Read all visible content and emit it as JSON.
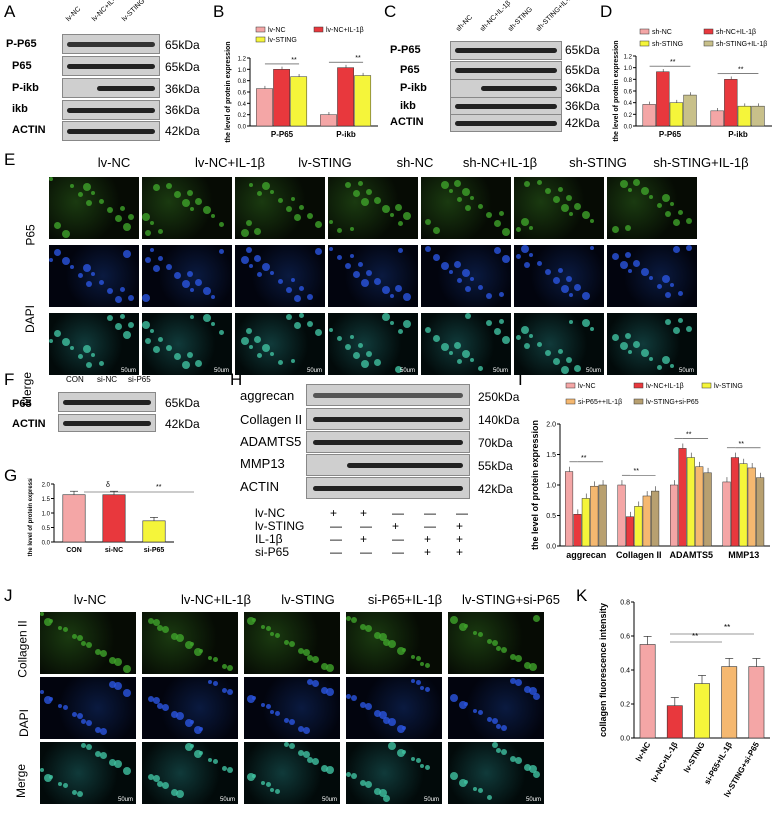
{
  "panels": {
    "A": {
      "label": "A",
      "cols": [
        "lv-NC",
        "lv-NC+IL-1β",
        "lv-STING"
      ],
      "rows": [
        "P-P65",
        "P65",
        "P-ikb",
        "ikb",
        "ACTIN"
      ],
      "kda": [
        "65kDa",
        "65kDa",
        "36kDa",
        "36kDa",
        "42kDa"
      ]
    },
    "B": {
      "label": "B",
      "ylabel": "the level of protein expression",
      "legend": [
        "lv-NC",
        "lv-NC+IL-1β",
        "lv-STING"
      ],
      "groups": [
        "P-P65",
        "P-ikb"
      ],
      "sig": "**"
    },
    "C": {
      "label": "C",
      "cols": [
        "sh-NC",
        "sh-NC+IL-1β",
        "sh-STING",
        "sh-STING+IL-1β"
      ],
      "rows": [
        "P-P65",
        "P65",
        "P-ikb",
        "ikb",
        "ACTIN"
      ],
      "kda": [
        "65kDa",
        "65kDa",
        "36kDa",
        "36kDa",
        "42kDa"
      ]
    },
    "D": {
      "label": "D",
      "ylabel": "the level of protein expression",
      "legend": [
        "sh-NC",
        "sh-NC+IL-1β",
        "sh-STING",
        "sh-STING+IL-1β"
      ],
      "groups": [
        "P-P65",
        "P-ikb"
      ],
      "sig": "**",
      "sig2": "δ"
    },
    "E": {
      "label": "E",
      "cols": [
        "lv-NC",
        "lv-NC+IL-1β",
        "lv-STING",
        "sh-NC",
        "sh-NC+IL-1β",
        "sh-STING",
        "sh-STING+IL-1β"
      ],
      "rows": [
        "P65",
        "DAPI",
        "Merge"
      ],
      "scale": "50um"
    },
    "F": {
      "label": "F",
      "cols": [
        "CON",
        "si-NC",
        "si-P65"
      ],
      "rows": [
        "P65",
        "ACTIN"
      ],
      "kda": [
        "65kDa",
        "42kDa"
      ]
    },
    "G": {
      "label": "G",
      "ylabel": "the level of protein expression",
      "sig": "**",
      "sig2": "δ"
    },
    "H": {
      "label": "H",
      "rows": [
        "aggrecan",
        "Collagen II",
        "ADAMTS5",
        "MMP13",
        "ACTIN"
      ],
      "kda": [
        "250kDa",
        "140kDa",
        "70kDa",
        "55kDa",
        "42kDa"
      ],
      "conds": [
        {
          "name": "lv-NC",
          "marks": [
            "+",
            "+",
            "—",
            "—",
            "—"
          ]
        },
        {
          "name": "lv-STING",
          "marks": [
            "—",
            "—",
            "+",
            "—",
            "+"
          ]
        },
        {
          "name": "IL-1β",
          "marks": [
            "—",
            "+",
            "—",
            "+",
            "+"
          ]
        },
        {
          "name": "si-P65",
          "marks": [
            "—",
            "—",
            "—",
            "+",
            "+"
          ]
        }
      ]
    },
    "I": {
      "label": "I",
      "ylabel": "the level of protein expression",
      "legend": [
        "lv-NC",
        "lv-NC+IL-1β",
        "lv-STING",
        "si-P65++IL-1β",
        "lv-STING+si-P65"
      ],
      "groups": [
        "aggrecan",
        "Collagen II",
        "ADAMTS5",
        "MMP13"
      ],
      "sig": "**"
    },
    "J": {
      "label": "J",
      "cols": [
        "lv-NC",
        "lv-NC+IL-1β",
        "lv-STING",
        "si-P65+IL-1β",
        "lv-STING+si-P65"
      ],
      "rows": [
        "Collagen II",
        "DAPI",
        "Merge"
      ],
      "scale": "50um"
    },
    "K": {
      "label": "K",
      "ylabel": "collagen fluorescence intensity",
      "sig": "**"
    }
  },
  "chart_data": [
    {
      "type": "bar",
      "panel": "B",
      "categories": [
        "P-P65",
        "P-ikb"
      ],
      "ylim": [
        0,
        1.2
      ],
      "yticks": [
        "0.0",
        "0.2",
        "0.4",
        "0.6",
        "0.8",
        "1.0",
        "1.2"
      ],
      "series": [
        {
          "name": "lv-NC",
          "color": "#f4a6a6",
          "values": [
            0.66,
            0.2
          ]
        },
        {
          "name": "lv-NC+IL-1β",
          "color": "#e8383d",
          "values": [
            1.0,
            1.03
          ]
        },
        {
          "name": "lv-STING",
          "color": "#f5f53a",
          "values": [
            0.87,
            0.89
          ]
        }
      ]
    },
    {
      "type": "bar",
      "panel": "D",
      "categories": [
        "P-P65",
        "P-ikb"
      ],
      "ylim": [
        0,
        1.2
      ],
      "yticks": [
        "0.0",
        "0.2",
        "0.4",
        "0.6",
        "0.8",
        "1.0",
        "1.2"
      ],
      "series": [
        {
          "name": "sh-NC",
          "color": "#f4a6a6",
          "values": [
            0.37,
            0.26
          ]
        },
        {
          "name": "sh-NC+IL-1β",
          "color": "#e8383d",
          "values": [
            0.93,
            0.8
          ]
        },
        {
          "name": "sh-STING",
          "color": "#f5f53a",
          "values": [
            0.4,
            0.34
          ]
        },
        {
          "name": "sh-STING+IL-1β",
          "color": "#c8c08a",
          "values": [
            0.53,
            0.34
          ]
        }
      ]
    },
    {
      "type": "bar",
      "panel": "G",
      "categories": [
        "CON",
        "si-NC",
        "si-P65"
      ],
      "ylim": [
        0,
        2.0
      ],
      "yticks": [
        "0.0",
        "0.5",
        "1.0",
        "1.5",
        "2.0"
      ],
      "series": [
        {
          "name": "",
          "colors": [
            "#f4a6a6",
            "#e8383d",
            "#f5f53a"
          ],
          "values": [
            1.63,
            1.63,
            0.73
          ]
        }
      ]
    },
    {
      "type": "bar",
      "panel": "I",
      "categories": [
        "aggrecan",
        "Collagen II",
        "ADAMTS5",
        "MMP13"
      ],
      "ylim": [
        0,
        2.0
      ],
      "yticks": [
        "0.0",
        "0.5",
        "1.0",
        "1.5",
        "2.0"
      ],
      "series": [
        {
          "name": "lv-NC",
          "color": "#f4a6a6",
          "values": [
            1.22,
            1.0,
            1.0,
            1.05
          ]
        },
        {
          "name": "lv-NC+IL-1β",
          "color": "#e8383d",
          "values": [
            0.52,
            0.48,
            1.6,
            1.45
          ]
        },
        {
          "name": "lv-STING",
          "color": "#f5f53a",
          "values": [
            0.78,
            0.65,
            1.45,
            1.35
          ]
        },
        {
          "name": "si-P65++IL-1β",
          "color": "#f5b870",
          "values": [
            0.98,
            0.82,
            1.3,
            1.28
          ]
        },
        {
          "name": "lv-STING+si-P65",
          "color": "#b8a070",
          "values": [
            1.0,
            0.9,
            1.2,
            1.12
          ]
        }
      ]
    },
    {
      "type": "bar",
      "panel": "K",
      "categories": [
        "lv-NC",
        "lv-NC+IL-1β",
        "lv-STING",
        "si-P65+IL-1β",
        "lv-STING+si-P65"
      ],
      "ylim": [
        0,
        0.8
      ],
      "yticks": [
        "0.0",
        "0.2",
        "0.4",
        "0.6",
        "0.8"
      ],
      "series": [
        {
          "name": "",
          "colors": [
            "#f4a6a6",
            "#e8383d",
            "#f5f53a",
            "#f5b870",
            "#f4a6a6"
          ],
          "values": [
            0.55,
            0.19,
            0.32,
            0.42,
            0.42
          ]
        }
      ]
    }
  ]
}
